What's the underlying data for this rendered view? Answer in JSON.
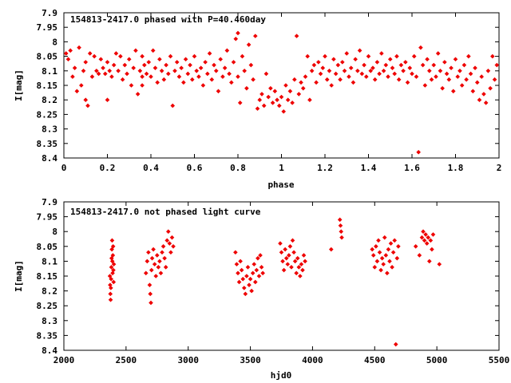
{
  "chart_data": [
    {
      "type": "scatter",
      "title": "154813-2417.0 phased with P=40.460day",
      "xlabel": "phase",
      "ylabel": "I[mag]",
      "xlim": [
        0,
        2
      ],
      "ylim": [
        8.4,
        7.9
      ],
      "y_inverted": true,
      "grid": false,
      "color": "#ee0000",
      "marker": "small-diamond",
      "xticks": [
        "0",
        "0.2",
        "0.4",
        "0.6",
        "0.8",
        "1",
        "1.2",
        "1.4",
        "1.6",
        "1.8",
        "2"
      ],
      "yticks": [
        "7.9",
        "7.95",
        "8",
        "8.05",
        "8.1",
        "8.15",
        "8.2",
        "8.25",
        "8.3",
        "8.35",
        "8.4"
      ],
      "points": [
        [
          0.01,
          8.04
        ],
        [
          0.02,
          8.06
        ],
        [
          0.03,
          8.03
        ],
        [
          0.04,
          8.12
        ],
        [
          0.05,
          8.09
        ],
        [
          0.06,
          8.17
        ],
        [
          0.07,
          8.02
        ],
        [
          0.08,
          8.15
        ],
        [
          0.09,
          8.1
        ],
        [
          0.1,
          8.07
        ],
        [
          0.1,
          8.2
        ],
        [
          0.11,
          8.22
        ],
        [
          0.12,
          8.04
        ],
        [
          0.13,
          8.12
        ],
        [
          0.14,
          8.05
        ],
        [
          0.15,
          8.1
        ],
        [
          0.16,
          8.11
        ],
        [
          0.17,
          8.06
        ],
        [
          0.18,
          8.09
        ],
        [
          0.19,
          8.11
        ],
        [
          0.2,
          8.07
        ],
        [
          0.2,
          8.2
        ],
        [
          0.21,
          8.1
        ],
        [
          0.22,
          8.12
        ],
        [
          0.23,
          8.08
        ],
        [
          0.24,
          8.04
        ],
        [
          0.25,
          8.1
        ],
        [
          0.26,
          8.05
        ],
        [
          0.27,
          8.13
        ],
        [
          0.28,
          8.08
        ],
        [
          0.29,
          8.11
        ],
        [
          0.3,
          8.06
        ],
        [
          0.31,
          8.15
        ],
        [
          0.32,
          8.09
        ],
        [
          0.33,
          8.03
        ],
        [
          0.34,
          8.18
        ],
        [
          0.35,
          8.1
        ],
        [
          0.36,
          8.05
        ],
        [
          0.36,
          8.12
        ],
        [
          0.36,
          8.15
        ],
        [
          0.37,
          8.08
        ],
        [
          0.38,
          8.11
        ],
        [
          0.39,
          8.07
        ],
        [
          0.4,
          8.12
        ],
        [
          0.41,
          8.03
        ],
        [
          0.42,
          8.09
        ],
        [
          0.43,
          8.14
        ],
        [
          0.44,
          8.06
        ],
        [
          0.45,
          8.1
        ],
        [
          0.46,
          8.13
        ],
        [
          0.47,
          8.08
        ],
        [
          0.48,
          8.11
        ],
        [
          0.49,
          8.05
        ],
        [
          0.5,
          8.22
        ],
        [
          0.51,
          8.1
        ],
        [
          0.52,
          8.07
        ],
        [
          0.53,
          8.12
        ],
        [
          0.54,
          8.09
        ],
        [
          0.55,
          8.14
        ],
        [
          0.56,
          8.06
        ],
        [
          0.57,
          8.11
        ],
        [
          0.58,
          8.08
        ],
        [
          0.59,
          8.13
        ],
        [
          0.6,
          8.05
        ],
        [
          0.61,
          8.1
        ],
        [
          0.62,
          8.12
        ],
        [
          0.63,
          8.09
        ],
        [
          0.64,
          8.15
        ],
        [
          0.65,
          8.07
        ],
        [
          0.66,
          8.11
        ],
        [
          0.67,
          8.04
        ],
        [
          0.68,
          8.13
        ],
        [
          0.69,
          8.08
        ],
        [
          0.7,
          8.1
        ],
        [
          0.71,
          8.17
        ],
        [
          0.72,
          8.06
        ],
        [
          0.73,
          8.12
        ],
        [
          0.74,
          8.09
        ],
        [
          0.75,
          8.03
        ],
        [
          0.76,
          8.11
        ],
        [
          0.77,
          8.14
        ],
        [
          0.78,
          8.07
        ],
        [
          0.79,
          7.99
        ],
        [
          0.8,
          7.97
        ],
        [
          0.8,
          8.12
        ],
        [
          0.81,
          8.21
        ],
        [
          0.82,
          8.05
        ],
        [
          0.83,
          8.1
        ],
        [
          0.84,
          8.16
        ],
        [
          0.85,
          8.01
        ],
        [
          0.86,
          8.08
        ],
        [
          0.87,
          8.13
        ],
        [
          0.88,
          7.98
        ],
        [
          0.89,
          8.23
        ],
        [
          0.9,
          8.2
        ],
        [
          0.91,
          8.18
        ],
        [
          0.92,
          8.22
        ],
        [
          0.93,
          8.11
        ],
        [
          0.94,
          8.19
        ],
        [
          0.95,
          8.16
        ],
        [
          0.96,
          8.21
        ],
        [
          0.97,
          8.17
        ],
        [
          0.98,
          8.2
        ],
        [
          0.99,
          8.22
        ],
        [
          1.0,
          8.19
        ],
        [
          1.01,
          8.24
        ],
        [
          1.02,
          8.15
        ],
        [
          1.03,
          8.2
        ],
        [
          1.04,
          8.17
        ],
        [
          1.05,
          8.21
        ],
        [
          1.06,
          8.13
        ],
        [
          1.07,
          7.98
        ],
        [
          1.08,
          8.18
        ],
        [
          1.09,
          8.14
        ],
        [
          1.1,
          8.16
        ],
        [
          1.11,
          8.12
        ],
        [
          1.12,
          8.05
        ],
        [
          1.13,
          8.2
        ],
        [
          1.14,
          8.1
        ],
        [
          1.15,
          8.08
        ],
        [
          1.16,
          8.14
        ],
        [
          1.17,
          8.07
        ],
        [
          1.18,
          8.11
        ],
        [
          1.19,
          8.09
        ],
        [
          1.2,
          8.05
        ],
        [
          1.21,
          8.13
        ],
        [
          1.22,
          8.1
        ],
        [
          1.23,
          8.15
        ],
        [
          1.24,
          8.06
        ],
        [
          1.25,
          8.11
        ],
        [
          1.26,
          8.08
        ],
        [
          1.27,
          8.13
        ],
        [
          1.28,
          8.07
        ],
        [
          1.29,
          8.1
        ],
        [
          1.3,
          8.04
        ],
        [
          1.31,
          8.12
        ],
        [
          1.32,
          8.09
        ],
        [
          1.33,
          8.14
        ],
        [
          1.34,
          8.06
        ],
        [
          1.35,
          8.1
        ],
        [
          1.36,
          8.03
        ],
        [
          1.37,
          8.11
        ],
        [
          1.38,
          8.08
        ],
        [
          1.39,
          8.12
        ],
        [
          1.4,
          8.05
        ],
        [
          1.41,
          8.1
        ],
        [
          1.42,
          8.09
        ],
        [
          1.43,
          8.13
        ],
        [
          1.44,
          8.07
        ],
        [
          1.45,
          8.11
        ],
        [
          1.46,
          8.04
        ],
        [
          1.47,
          8.1
        ],
        [
          1.48,
          8.08
        ],
        [
          1.49,
          8.12
        ],
        [
          1.5,
          8.06
        ],
        [
          1.51,
          8.09
        ],
        [
          1.52,
          8.11
        ],
        [
          1.53,
          8.05
        ],
        [
          1.54,
          8.13
        ],
        [
          1.55,
          8.08
        ],
        [
          1.56,
          8.1
        ],
        [
          1.57,
          8.07
        ],
        [
          1.58,
          8.14
        ],
        [
          1.59,
          8.09
        ],
        [
          1.6,
          8.11
        ],
        [
          1.61,
          8.05
        ],
        [
          1.62,
          8.12
        ],
        [
          1.63,
          8.38
        ],
        [
          1.64,
          8.02
        ],
        [
          1.65,
          8.08
        ],
        [
          1.66,
          8.15
        ],
        [
          1.67,
          8.06
        ],
        [
          1.68,
          8.1
        ],
        [
          1.69,
          8.13
        ],
        [
          1.7,
          8.08
        ],
        [
          1.71,
          8.12
        ],
        [
          1.72,
          8.04
        ],
        [
          1.73,
          8.1
        ],
        [
          1.74,
          8.16
        ],
        [
          1.75,
          8.07
        ],
        [
          1.76,
          8.11
        ],
        [
          1.77,
          8.13
        ],
        [
          1.78,
          8.09
        ],
        [
          1.79,
          8.17
        ],
        [
          1.8,
          8.06
        ],
        [
          1.81,
          8.12
        ],
        [
          1.82,
          8.1
        ],
        [
          1.83,
          8.15
        ],
        [
          1.84,
          8.08
        ],
        [
          1.85,
          8.13
        ],
        [
          1.86,
          8.05
        ],
        [
          1.87,
          8.11
        ],
        [
          1.88,
          8.17
        ],
        [
          1.89,
          8.09
        ],
        [
          1.9,
          8.14
        ],
        [
          1.91,
          8.2
        ],
        [
          1.92,
          8.12
        ],
        [
          1.93,
          8.18
        ],
        [
          1.94,
          8.21
        ],
        [
          1.95,
          8.1
        ],
        [
          1.96,
          8.16
        ],
        [
          1.97,
          8.05
        ],
        [
          1.98,
          8.13
        ],
        [
          1.99,
          8.08
        ]
      ]
    },
    {
      "type": "scatter",
      "title": "154813-2417.0 not phased light curve",
      "xlabel": "hjd0",
      "ylabel": "I[mag]",
      "xlim": [
        2000,
        5500
      ],
      "ylim": [
        8.4,
        7.9
      ],
      "y_inverted": true,
      "grid": false,
      "color": "#ee0000",
      "marker": "small-diamond",
      "xticks": [
        "2000",
        "2500",
        "3000",
        "3500",
        "4000",
        "4500",
        "5000",
        "5500"
      ],
      "yticks": [
        "7.9",
        "7.95",
        "8",
        "8.05",
        "8.1",
        "8.15",
        "8.2",
        "8.25",
        "8.3",
        "8.35",
        "8.4"
      ],
      "points": [
        [
          2370,
          8.15
        ],
        [
          2372,
          8.18
        ],
        [
          2374,
          8.21
        ],
        [
          2376,
          8.23
        ],
        [
          2378,
          8.19
        ],
        [
          2380,
          8.16
        ],
        [
          2382,
          8.12
        ],
        [
          2384,
          8.09
        ],
        [
          2386,
          8.06
        ],
        [
          2388,
          8.03
        ],
        [
          2390,
          8.1
        ],
        [
          2392,
          8.14
        ],
        [
          2394,
          8.08
        ],
        [
          2396,
          8.05
        ],
        [
          2398,
          8.13
        ],
        [
          2400,
          8.17
        ],
        [
          2402,
          8.11
        ],
        [
          2660,
          8.14
        ],
        [
          2670,
          8.1
        ],
        [
          2680,
          8.07
        ],
        [
          2690,
          8.18
        ],
        [
          2695,
          8.21
        ],
        [
          2700,
          8.24
        ],
        [
          2705,
          8.13
        ],
        [
          2710,
          8.09
        ],
        [
          2720,
          8.06
        ],
        [
          2730,
          8.11
        ],
        [
          2740,
          8.15
        ],
        [
          2750,
          8.08
        ],
        [
          2760,
          8.12
        ],
        [
          2770,
          8.1
        ],
        [
          2780,
          8.14
        ],
        [
          2790,
          8.07
        ],
        [
          2800,
          8.05
        ],
        [
          2810,
          8.09
        ],
        [
          2820,
          8.12
        ],
        [
          2830,
          8.03
        ],
        [
          2840,
          8.0
        ],
        [
          2850,
          8.04
        ],
        [
          2860,
          8.07
        ],
        [
          2870,
          8.02
        ],
        [
          2880,
          8.05
        ],
        [
          3380,
          8.07
        ],
        [
          3390,
          8.11
        ],
        [
          3400,
          8.14
        ],
        [
          3410,
          8.17
        ],
        [
          3420,
          8.1
        ],
        [
          3430,
          8.13
        ],
        [
          3440,
          8.16
        ],
        [
          3450,
          8.19
        ],
        [
          3460,
          8.21
        ],
        [
          3470,
          8.15
        ],
        [
          3480,
          8.12
        ],
        [
          3490,
          8.18
        ],
        [
          3500,
          8.16
        ],
        [
          3510,
          8.2
        ],
        [
          3520,
          8.14
        ],
        [
          3530,
          8.11
        ],
        [
          3540,
          8.17
        ],
        [
          3550,
          8.13
        ],
        [
          3560,
          8.09
        ],
        [
          3570,
          8.15
        ],
        [
          3580,
          8.08
        ],
        [
          3590,
          8.12
        ],
        [
          3600,
          8.14
        ],
        [
          3740,
          8.04
        ],
        [
          3750,
          8.07
        ],
        [
          3760,
          8.1
        ],
        [
          3770,
          8.13
        ],
        [
          3780,
          8.06
        ],
        [
          3790,
          8.09
        ],
        [
          3800,
          8.11
        ],
        [
          3810,
          8.08
        ],
        [
          3820,
          8.05
        ],
        [
          3830,
          8.12
        ],
        [
          3840,
          8.03
        ],
        [
          3850,
          8.07
        ],
        [
          3860,
          8.1
        ],
        [
          3870,
          8.14
        ],
        [
          3880,
          8.09
        ],
        [
          3890,
          8.12
        ],
        [
          3900,
          8.15
        ],
        [
          3910,
          8.11
        ],
        [
          3920,
          8.13
        ],
        [
          3930,
          8.08
        ],
        [
          3940,
          8.1
        ],
        [
          4150,
          8.06
        ],
        [
          4220,
          7.96
        ],
        [
          4225,
          7.98
        ],
        [
          4230,
          8.0
        ],
        [
          4235,
          8.02
        ],
        [
          4480,
          8.06
        ],
        [
          4490,
          8.08
        ],
        [
          4500,
          8.12
        ],
        [
          4510,
          8.05
        ],
        [
          4520,
          8.1
        ],
        [
          4530,
          8.03
        ],
        [
          4540,
          8.07
        ],
        [
          4550,
          8.13
        ],
        [
          4560,
          8.09
        ],
        [
          4570,
          8.11
        ],
        [
          4580,
          8.02
        ],
        [
          4590,
          8.08
        ],
        [
          4600,
          8.14
        ],
        [
          4610,
          8.06
        ],
        [
          4620,
          8.1
        ],
        [
          4630,
          8.04
        ],
        [
          4640,
          8.12
        ],
        [
          4650,
          8.07
        ],
        [
          4660,
          8.03
        ],
        [
          4670,
          8.38
        ],
        [
          4680,
          8.09
        ],
        [
          4690,
          8.05
        ],
        [
          4830,
          8.05
        ],
        [
          4860,
          8.08
        ],
        [
          4880,
          8.02
        ],
        [
          4890,
          8.0
        ],
        [
          4900,
          8.03
        ],
        [
          4910,
          8.01
        ],
        [
          4920,
          8.04
        ],
        [
          4930,
          8.02
        ],
        [
          4940,
          8.1
        ],
        [
          4950,
          8.03
        ],
        [
          4960,
          8.06
        ],
        [
          4970,
          8.01
        ],
        [
          5020,
          8.11
        ]
      ]
    }
  ]
}
